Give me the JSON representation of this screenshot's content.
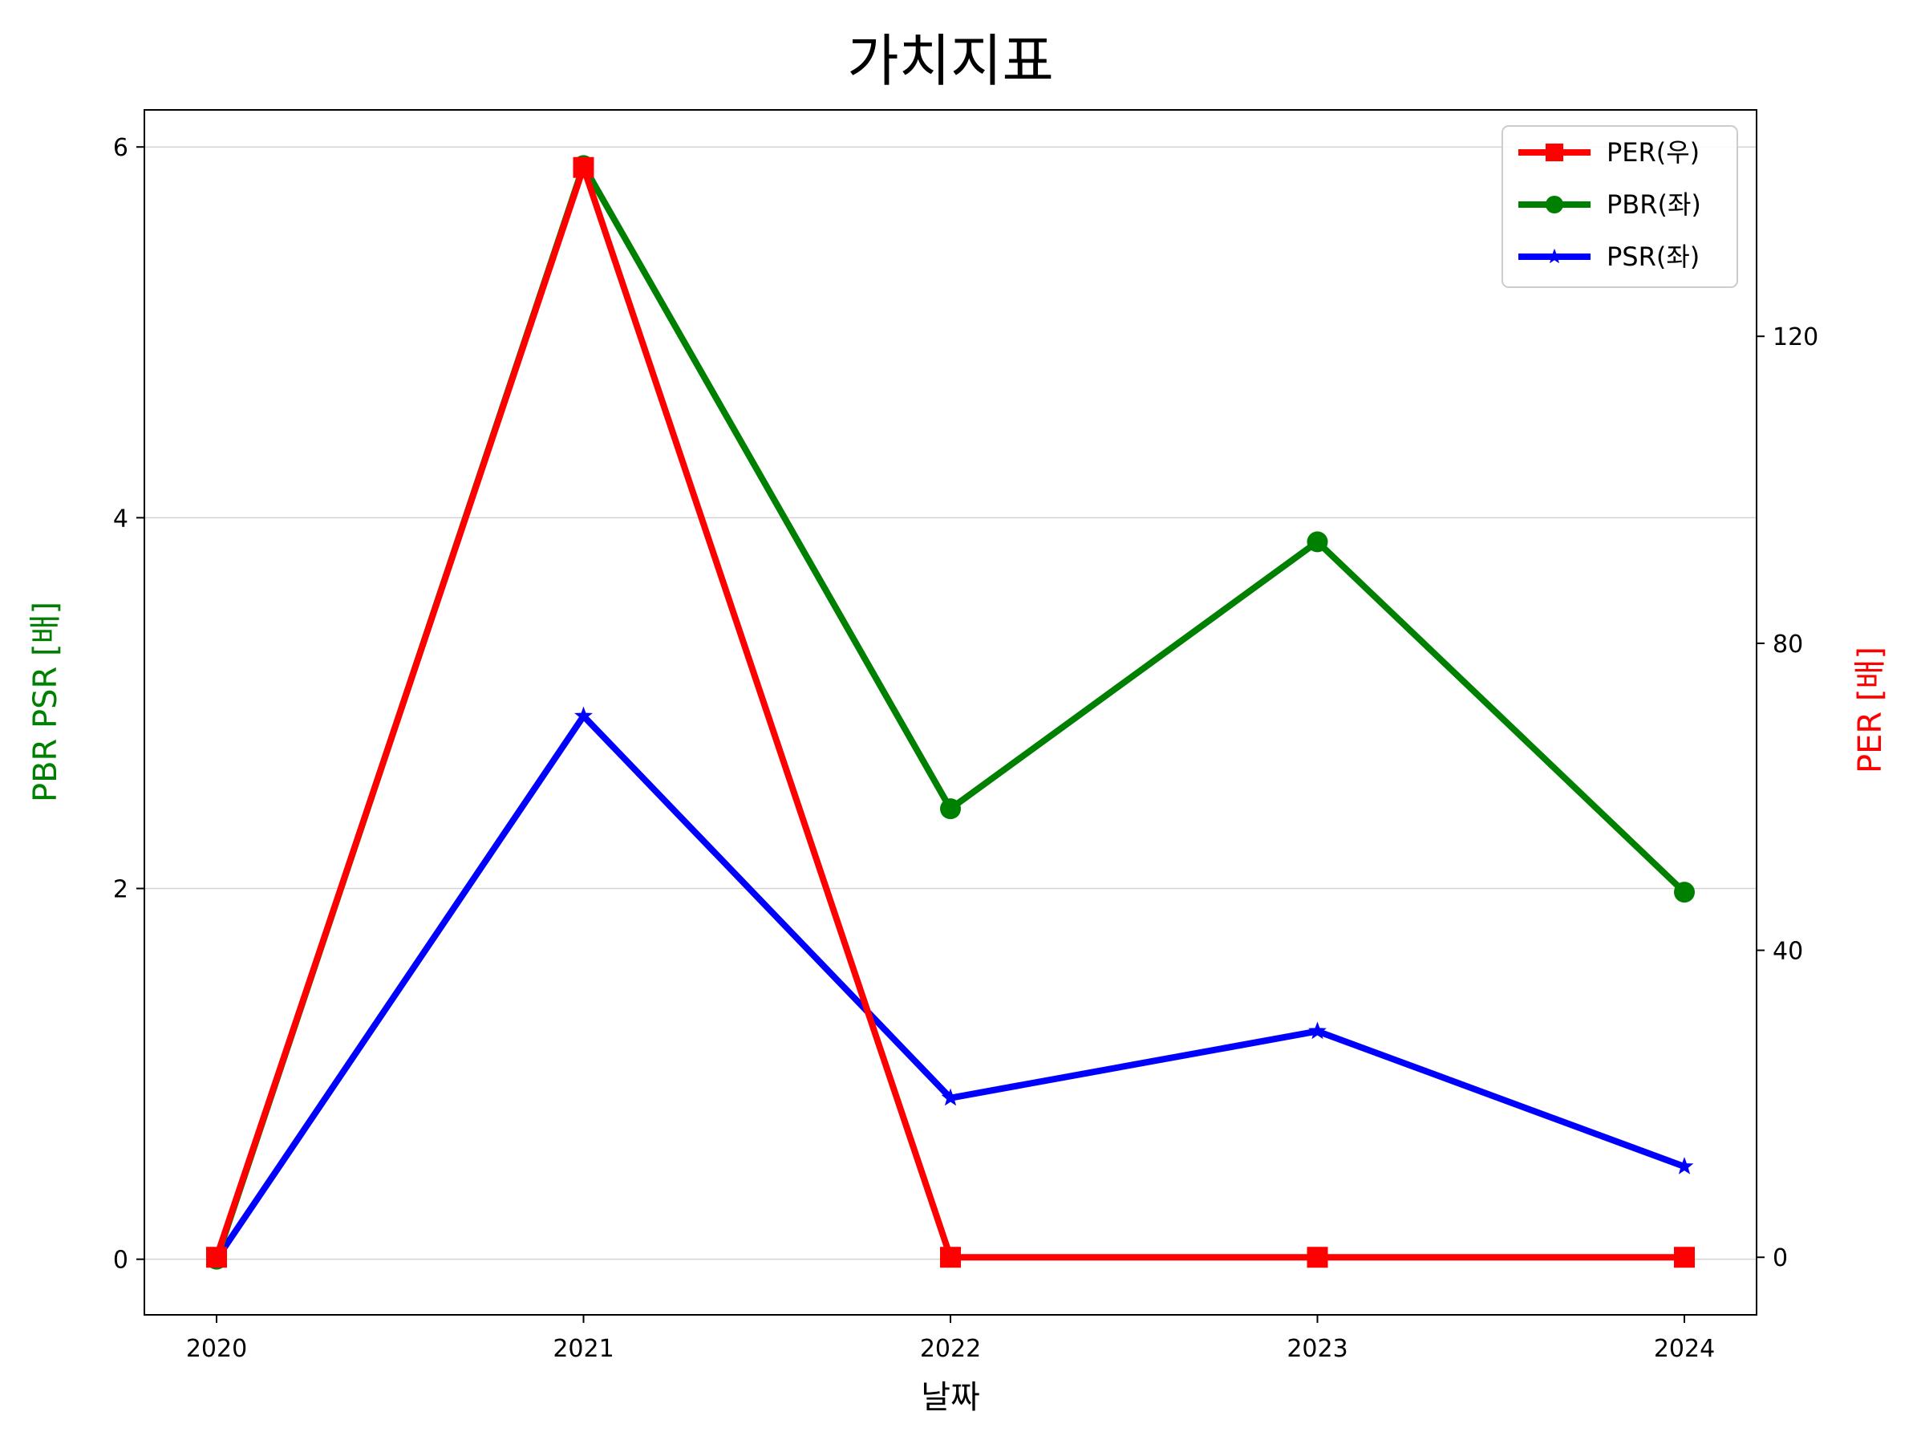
{
  "chart_data": {
    "type": "line",
    "title": "가치지표",
    "xlabel": "날짜",
    "ylabel_left": "PBR PSR [배]",
    "ylabel_right": "PER [배]",
    "categories": [
      "2020",
      "2021",
      "2022",
      "2023",
      "2024"
    ],
    "y_left": {
      "lim": [
        -0.3,
        6.2
      ],
      "ticks": [
        "0",
        "2",
        "4",
        "6"
      ]
    },
    "y_right": {
      "lim": [
        -7.5,
        149.5
      ],
      "ticks": [
        "0",
        "40",
        "80",
        "120"
      ]
    },
    "grid": "horizontal",
    "legend_position": "top-right",
    "series": [
      {
        "name": "PER(우)",
        "axis": "right",
        "values": [
          0,
          142,
          0,
          0,
          0
        ],
        "color": "#ff0000",
        "marker": "square"
      },
      {
        "name": "PBR(좌)",
        "axis": "left",
        "values": [
          0,
          5.9,
          2.43,
          3.87,
          1.98
        ],
        "color": "#008000",
        "marker": "circle"
      },
      {
        "name": "PSR(좌)",
        "axis": "left",
        "values": [
          0,
          2.93,
          0.87,
          1.23,
          0.5
        ],
        "color": "#0000ff",
        "marker": "star"
      }
    ],
    "colors": {
      "left_axis_label": "#008000",
      "right_axis_label": "#ff0000",
      "grid": "#d3d3d3"
    }
  }
}
